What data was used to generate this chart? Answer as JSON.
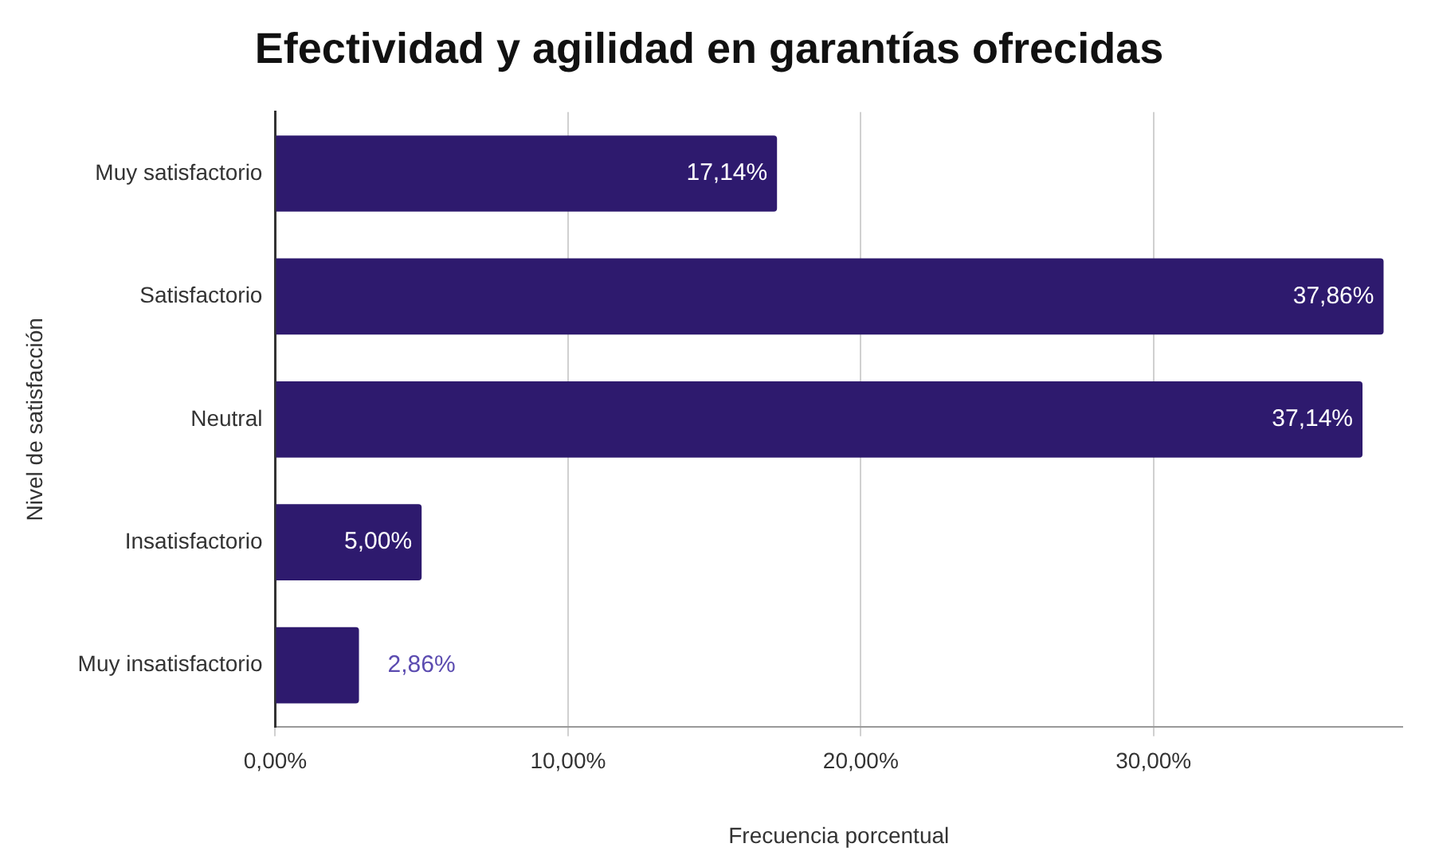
{
  "chart_data": {
    "type": "bar",
    "orientation": "horizontal",
    "title": "Efectividad y agilidad en garantías ofrecidas",
    "xlabel": "Frecuencia porcentual",
    "ylabel": "Nivel de satisfacción",
    "categories": [
      "Muy satisfactorio",
      "Satisfactorio",
      "Neutral",
      "Insatisfactorio",
      "Muy insatisfactorio"
    ],
    "values": [
      17.14,
      37.86,
      37.14,
      5.0,
      2.86
    ],
    "value_labels": [
      "17,14%",
      "37,86%",
      "37,14%",
      "5,00%",
      "2,86%"
    ],
    "color": "#2e1a6e",
    "xlim": [
      0,
      38.5
    ],
    "xticks": [
      {
        "value": 0,
        "label": "0,00%"
      },
      {
        "value": 10,
        "label": "10,00%"
      },
      {
        "value": 20,
        "label": "20,00%"
      },
      {
        "value": 30,
        "label": "30,00%"
      }
    ],
    "grid": "x",
    "legend": false
  }
}
